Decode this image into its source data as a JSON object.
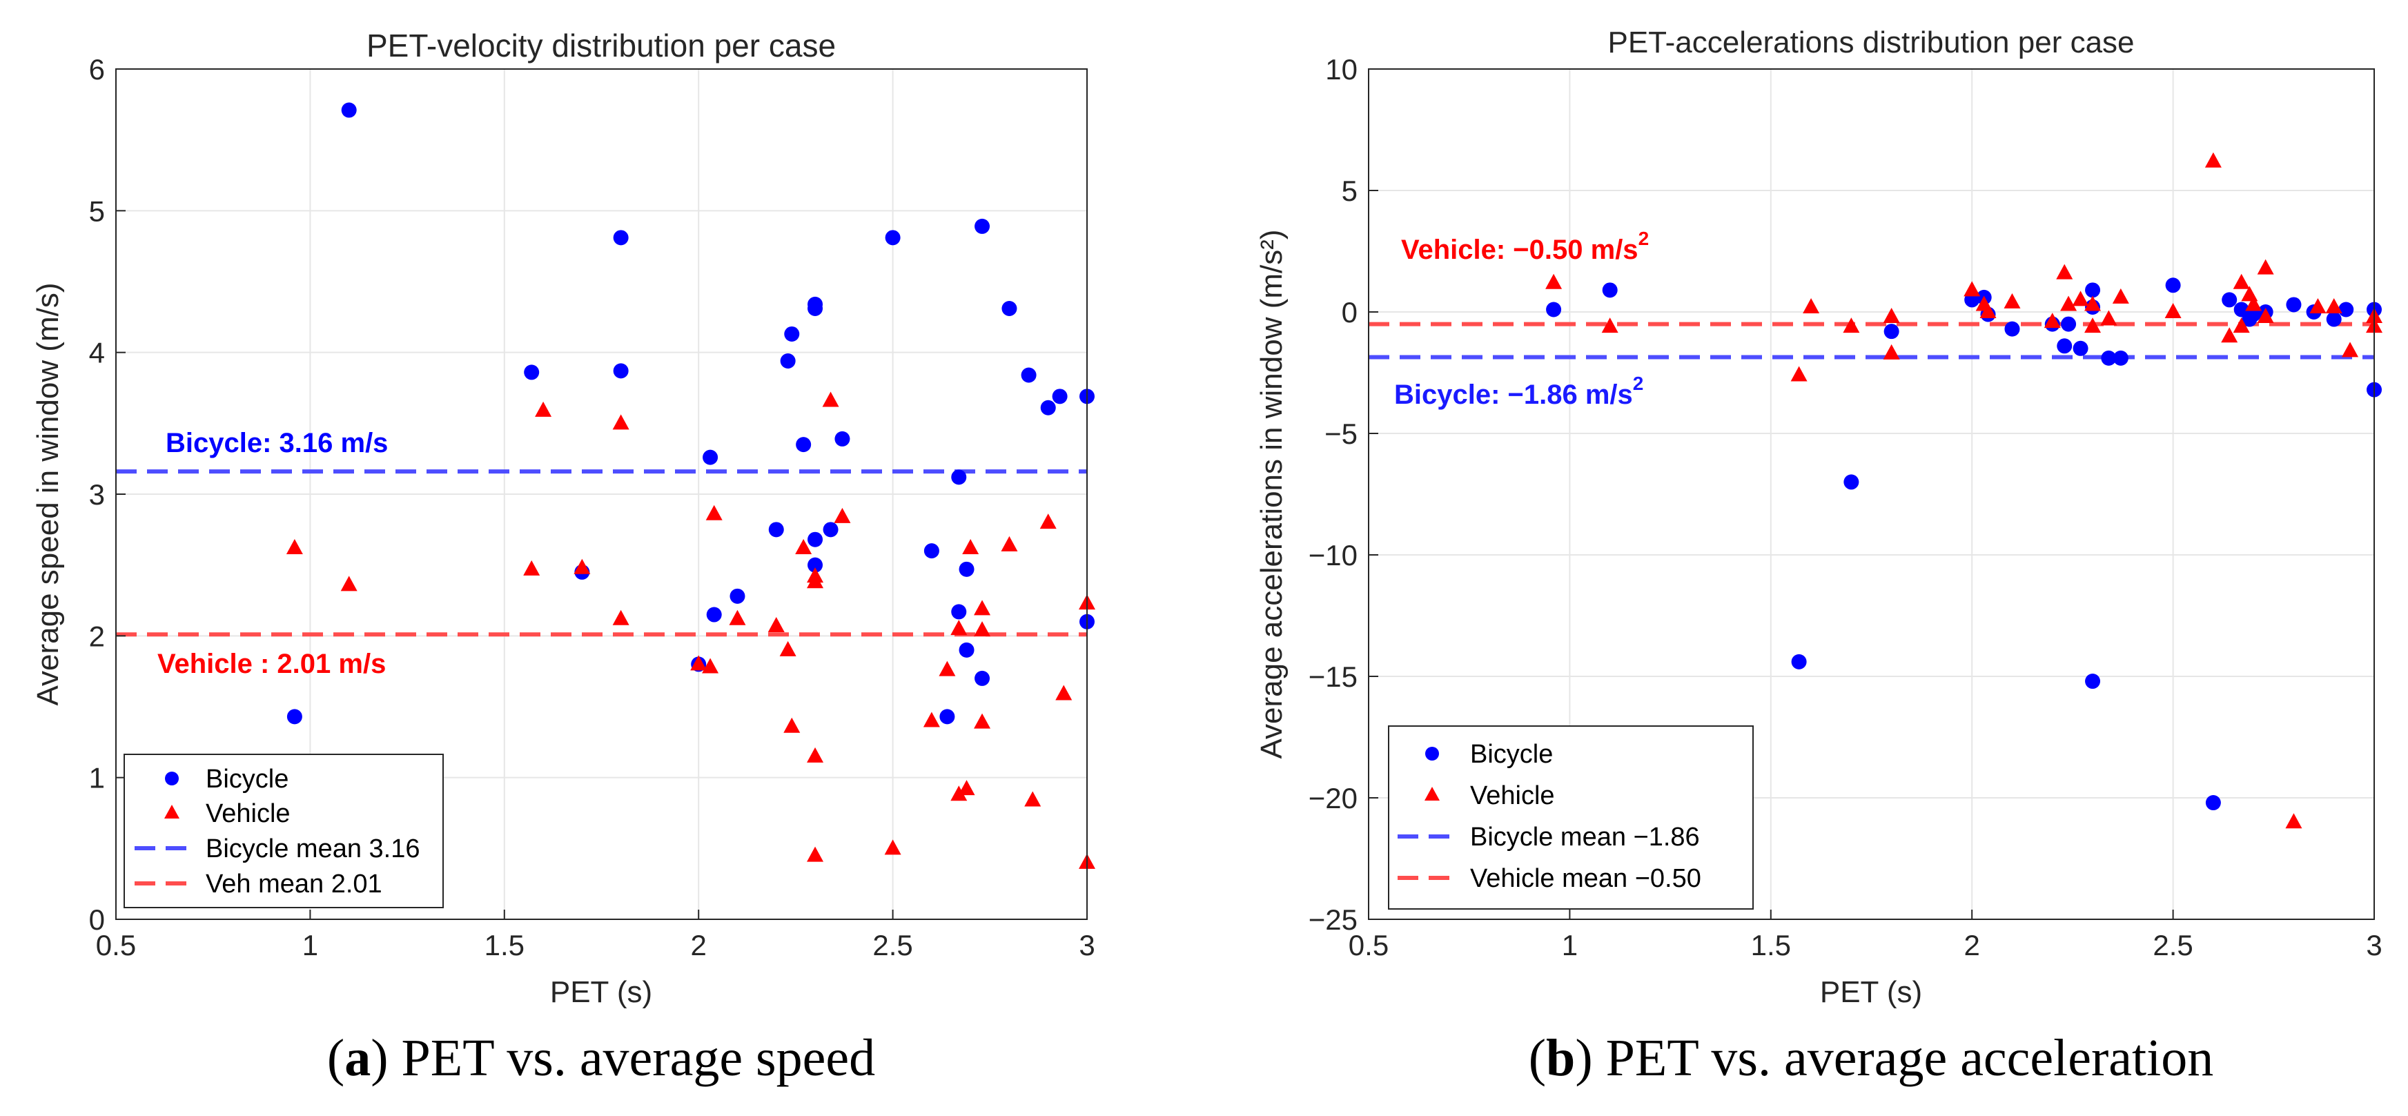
{
  "colors": {
    "bicycle": "#0000ff",
    "vehicle": "#ff0000",
    "bicycle_mean": "#4d4dff",
    "vehicle_mean": "#ff4d4d",
    "grid": "#e6e6e6",
    "axis": "#262626"
  },
  "chart_data": [
    {
      "type": "scatter",
      "title": "PET-velocity distribution per case",
      "xlabel": "PET (s)",
      "ylabel": "Average speed in window (m/s)",
      "xlim": [
        0.5,
        3
      ],
      "ylim": [
        0,
        6
      ],
      "xticks": [
        "0.5",
        "1",
        "1.5",
        "2",
        "2.5",
        "3"
      ],
      "yticks": [
        "0",
        "1",
        "2",
        "3",
        "4",
        "5",
        "6"
      ],
      "grid": true,
      "legend_position": "bottom-left",
      "legend": [
        "Bicycle",
        "Vehicle",
        "Bicycle mean 3.16",
        "Veh mean 2.01"
      ],
      "annotations": {
        "bicycle": "Bicycle: 3.16 m/s",
        "vehicle": "Vehicle : 2.01 m/s"
      },
      "means": {
        "bicycle": 3.16,
        "vehicle": 2.01
      },
      "series": [
        {
          "name": "Bicycle",
          "marker": "circle",
          "points": [
            [
              0.96,
              1.43
            ],
            [
              1.1,
              5.71
            ],
            [
              1.57,
              3.86
            ],
            [
              1.7,
              2.45
            ],
            [
              1.8,
              4.81
            ],
            [
              1.8,
              3.87
            ],
            [
              2.0,
              1.8
            ],
            [
              2.03,
              3.26
            ],
            [
              2.04,
              2.15
            ],
            [
              2.1,
              2.28
            ],
            [
              2.2,
              2.75
            ],
            [
              2.23,
              3.94
            ],
            [
              2.24,
              4.13
            ],
            [
              2.27,
              3.35
            ],
            [
              2.3,
              4.31
            ],
            [
              2.3,
              4.34
            ],
            [
              2.3,
              2.68
            ],
            [
              2.3,
              2.5
            ],
            [
              2.34,
              2.75
            ],
            [
              2.37,
              3.39
            ],
            [
              2.5,
              4.81
            ],
            [
              2.6,
              2.6
            ],
            [
              2.64,
              1.43
            ],
            [
              2.67,
              3.12
            ],
            [
              2.67,
              2.17
            ],
            [
              2.69,
              2.47
            ],
            [
              2.69,
              1.9
            ],
            [
              2.73,
              1.7
            ],
            [
              2.73,
              4.89
            ],
            [
              2.8,
              4.31
            ],
            [
              2.85,
              3.84
            ],
            [
              2.9,
              3.61
            ],
            [
              2.93,
              3.69
            ],
            [
              3.0,
              3.69
            ],
            [
              3.0,
              2.1
            ]
          ]
        },
        {
          "name": "Vehicle",
          "marker": "triangle",
          "points": [
            [
              0.96,
              2.62
            ],
            [
              1.1,
              2.36
            ],
            [
              1.57,
              2.47
            ],
            [
              1.6,
              3.59
            ],
            [
              1.7,
              2.48
            ],
            [
              1.8,
              3.5
            ],
            [
              1.8,
              2.12
            ],
            [
              2.0,
              1.8
            ],
            [
              2.03,
              1.78
            ],
            [
              2.04,
              2.86
            ],
            [
              2.1,
              2.12
            ],
            [
              2.2,
              2.07
            ],
            [
              2.23,
              1.9
            ],
            [
              2.24,
              1.36
            ],
            [
              2.27,
              2.62
            ],
            [
              2.3,
              2.38
            ],
            [
              2.3,
              2.42
            ],
            [
              2.3,
              1.15
            ],
            [
              2.3,
              0.45
            ],
            [
              2.34,
              3.66
            ],
            [
              2.37,
              2.84
            ],
            [
              2.5,
              0.5
            ],
            [
              2.6,
              1.4
            ],
            [
              2.64,
              1.76
            ],
            [
              2.67,
              2.05
            ],
            [
              2.67,
              0.88
            ],
            [
              2.69,
              0.92
            ],
            [
              2.7,
              2.62
            ],
            [
              2.73,
              2.19
            ],
            [
              2.73,
              1.39
            ],
            [
              2.73,
              2.04
            ],
            [
              2.8,
              2.64
            ],
            [
              2.86,
              0.84
            ],
            [
              2.9,
              2.8
            ],
            [
              2.94,
              1.59
            ],
            [
              3.0,
              2.23
            ],
            [
              3.0,
              0.4
            ]
          ]
        }
      ]
    },
    {
      "type": "scatter",
      "title": "PET-accelerations distribution per case",
      "xlabel": "PET (s)",
      "ylabel": "Average accelerations in window (m/s²)",
      "xlim": [
        0.5,
        3
      ],
      "ylim": [
        -25,
        10
      ],
      "xticks": [
        "0.5",
        "1",
        "1.5",
        "2",
        "2.5",
        "3"
      ],
      "yticks": [
        "−25",
        "−20",
        "−15",
        "−10",
        "−5",
        "0",
        "5",
        "10"
      ],
      "grid": true,
      "legend_position": "bottom-left",
      "legend": [
        "Bicycle",
        "Vehicle",
        "Bicycle mean −1.86",
        "Vehicle mean −0.50"
      ],
      "annotations": {
        "vehicle_text": "Vehicle: −0.50 m/s",
        "vehicle_sup": "2",
        "bicycle_text": "Bicycle: −1.86 m/s",
        "bicycle_sup": "2"
      },
      "means": {
        "bicycle": -1.86,
        "vehicle": -0.5
      },
      "series": [
        {
          "name": "Bicycle",
          "marker": "circle",
          "points": [
            [
              0.96,
              0.1
            ],
            [
              1.1,
              0.9
            ],
            [
              1.57,
              -14.4
            ],
            [
              1.7,
              -7.0
            ],
            [
              1.8,
              -0.8
            ],
            [
              2.0,
              0.5
            ],
            [
              2.03,
              0.6
            ],
            [
              2.04,
              -0.1
            ],
            [
              2.1,
              -0.7
            ],
            [
              2.2,
              -0.5
            ],
            [
              2.23,
              -1.4
            ],
            [
              2.24,
              -0.5
            ],
            [
              2.27,
              -1.5
            ],
            [
              2.3,
              0.9
            ],
            [
              2.3,
              0.2
            ],
            [
              2.3,
              -15.2
            ],
            [
              2.34,
              -1.9
            ],
            [
              2.37,
              -1.9
            ],
            [
              2.5,
              1.1
            ],
            [
              2.6,
              -20.2
            ],
            [
              2.64,
              0.5
            ],
            [
              2.67,
              0.1
            ],
            [
              2.69,
              -0.3
            ],
            [
              2.7,
              -0.1
            ],
            [
              2.73,
              0.0
            ],
            [
              2.8,
              0.3
            ],
            [
              2.85,
              0.0
            ],
            [
              2.9,
              -0.3
            ],
            [
              2.93,
              0.1
            ],
            [
              3.0,
              0.1
            ],
            [
              3.0,
              -3.2
            ]
          ]
        },
        {
          "name": "Vehicle",
          "marker": "triangle",
          "points": [
            [
              0.96,
              1.2
            ],
            [
              1.1,
              -0.6
            ],
            [
              1.57,
              -2.6
            ],
            [
              1.6,
              0.2
            ],
            [
              1.7,
              -0.6
            ],
            [
              1.8,
              -0.2
            ],
            [
              1.8,
              -1.7
            ],
            [
              2.0,
              0.9
            ],
            [
              2.03,
              0.3
            ],
            [
              2.04,
              0.0
            ],
            [
              2.1,
              0.4
            ],
            [
              2.2,
              -0.4
            ],
            [
              2.23,
              1.6
            ],
            [
              2.24,
              0.3
            ],
            [
              2.27,
              0.5
            ],
            [
              2.3,
              0.3
            ],
            [
              2.3,
              -0.6
            ],
            [
              2.34,
              -0.3
            ],
            [
              2.37,
              0.6
            ],
            [
              2.5,
              0.0
            ],
            [
              2.6,
              6.2
            ],
            [
              2.64,
              -1.0
            ],
            [
              2.67,
              -0.6
            ],
            [
              2.67,
              1.2
            ],
            [
              2.69,
              0.7
            ],
            [
              2.7,
              0.3
            ],
            [
              2.73,
              1.8
            ],
            [
              2.73,
              -0.2
            ],
            [
              2.8,
              -21.0
            ],
            [
              2.86,
              0.2
            ],
            [
              2.9,
              0.2
            ],
            [
              2.94,
              -1.6
            ],
            [
              3.0,
              -0.2
            ],
            [
              3.0,
              -0.6
            ]
          ]
        }
      ]
    }
  ],
  "captions": [
    {
      "letter": "a",
      "text": " PET vs. average speed"
    },
    {
      "letter": "b",
      "text": " PET vs. average acceleration"
    }
  ]
}
